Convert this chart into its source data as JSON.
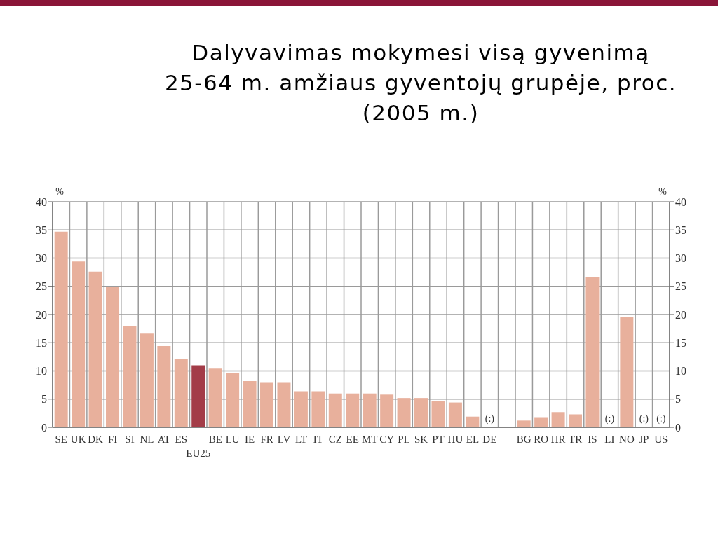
{
  "chart_data": {
    "type": "bar",
    "title": "Dalyvavimas mokymesi visą gyvenimą\n25-64 m. amžiaus gyventojų grupėje, proc.\n(2005 m.)",
    "categories": [
      "SE",
      "UK",
      "DK",
      "FI",
      "SI",
      "NL",
      "AT",
      "ES",
      "EU25",
      "BE",
      "LU",
      "IE",
      "FR",
      "LV",
      "LT",
      "IT",
      "CZ",
      "EE",
      "MT",
      "CY",
      "PL",
      "SK",
      "PT",
      "HU",
      "EL",
      "DE",
      null,
      "BG",
      "RO",
      "HR",
      "TR",
      "IS",
      "LI",
      "NO",
      "JP",
      "US"
    ],
    "values": [
      34.7,
      29.4,
      27.6,
      24.9,
      18.0,
      16.6,
      14.4,
      12.1,
      11.0,
      10.4,
      9.7,
      8.2,
      7.9,
      7.9,
      6.4,
      6.4,
      6.0,
      6.0,
      6.0,
      5.8,
      5.2,
      5.2,
      4.7,
      4.4,
      1.9,
      null,
      null,
      1.2,
      1.8,
      2.7,
      2.3,
      26.7,
      null,
      19.6,
      null,
      null
    ],
    "colors": [
      "#e8b09c",
      "#e8b09c",
      "#e8b09c",
      "#e8b09c",
      "#e8b09c",
      "#e8b09c",
      "#e8b09c",
      "#e8b09c",
      "#a33c48",
      "#e8b09c",
      "#e8b09c",
      "#e8b09c",
      "#e8b09c",
      "#e8b09c",
      "#e8b09c",
      "#e8b09c",
      "#e8b09c",
      "#e8b09c",
      "#e8b09c",
      "#e8b09c",
      "#e8b09c",
      "#e8b09c",
      "#e8b09c",
      "#e8b09c",
      "#e8b09c",
      "#e8b09c",
      "#e8b09c",
      "#e8b09c",
      "#e8b09c",
      "#e8b09c",
      "#e8b09c",
      "#e8b09c",
      "#e8b09c",
      "#e8b09c",
      "#e8b09c",
      "#e8b09c"
    ],
    "ylabel": "%",
    "y2label": "%",
    "ylim": [
      0,
      40
    ],
    "yticks": [
      0,
      5,
      10,
      15,
      20,
      25,
      30,
      35,
      40
    ],
    "y2lim": [
      0,
      40
    ],
    "y2ticks": [
      0,
      5,
      10,
      15,
      20,
      25,
      30,
      35,
      40
    ],
    "grid": true,
    "annotations": [
      "(:)",
      "(:)",
      "(:)",
      "(:)"
    ]
  }
}
